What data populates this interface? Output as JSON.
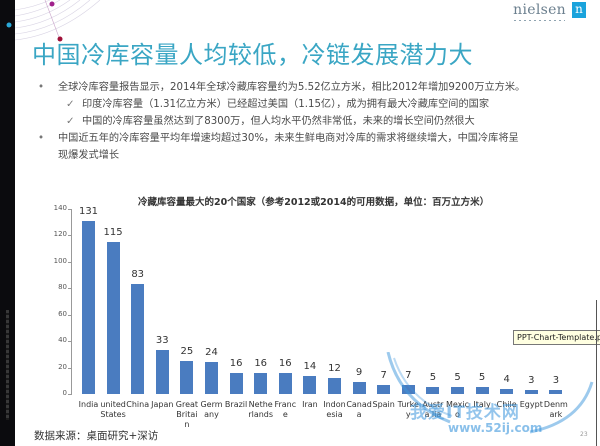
{
  "brand": {
    "logo_text": "nielsen",
    "logo_mark": "n",
    "accent": "#1aa3dc"
  },
  "slide": {
    "title": "中国冷库容量人均较低，冷链发展潜力大",
    "bullets": [
      {
        "text": "全球冷库容量报告显示，2014年全球冷藏库容量约为5.52亿立方米，相比2012年增加9200万立方米。",
        "sub": [
          "印度冷库容量（1.31亿立方米）已经超过美国（1.15亿），成为拥有最大冷藏库空间的国家",
          "中国的冷库容量虽然达到了8300万，但人均水平仍然非常低，未来的增长空间仍然很大"
        ]
      },
      {
        "text": "中国近五年的冷库容量平均年增速均超过30%，未来生鲜电商对冷库的需求将继续增大，中国冷库将呈现爆发式增长",
        "sub": []
      }
    ],
    "bullet_glyph": "•",
    "check_glyph": "✓",
    "source": "数据来源：桌面研究+深访",
    "page_number": "23"
  },
  "tooltip": {
    "text": "PPT-Chart-Template.pptx"
  },
  "watermark": {
    "text": "我爱IT技术网",
    "url": "www.52ij.com"
  },
  "chart_data": {
    "type": "bar",
    "title": "冷藏库容量最大的20个国家（参考2012或2014的可用数据，单位：百万立方米）",
    "xlabel": "",
    "ylabel": "",
    "ylim": [
      0,
      140
    ],
    "yticks": [
      0,
      20,
      40,
      60,
      80,
      100,
      120,
      140
    ],
    "grid": false,
    "legend": null,
    "bar_color": "#4a7cc0",
    "categories": [
      "India",
      "united States",
      "China",
      "Japan",
      "Great Britain",
      "Germany",
      "Brazil",
      "Netherlands",
      "France",
      "Iran",
      "Indonesia",
      "Canada",
      "Spain",
      "Turkey",
      "Australia",
      "Mexico",
      "Italy",
      "Chile",
      "Egypt",
      "Denmark"
    ],
    "category_display": [
      "India",
      "united States",
      "China",
      "Japan",
      "Great Britai n",
      "Germ any",
      "Brazil",
      "Nethe rlands",
      "Franc e",
      "Iran",
      "Indon esia",
      "Canad a",
      "Spain",
      "Turke y",
      "Austra lia",
      "Mexic o",
      "Italy",
      "Chile",
      "Egypt",
      "Denm ark"
    ],
    "values": [
      131,
      115,
      83,
      33,
      25,
      24,
      16,
      16,
      16,
      14,
      12,
      9,
      7,
      7,
      5,
      5,
      5,
      4,
      3,
      3
    ]
  }
}
